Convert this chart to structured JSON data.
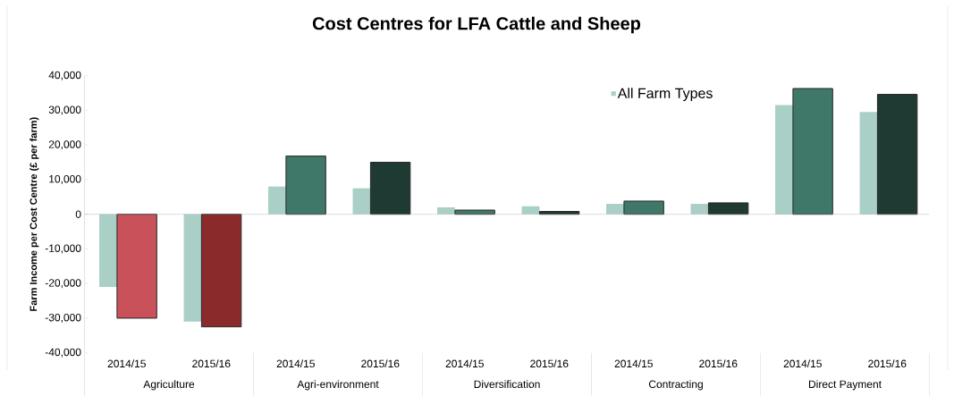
{
  "chart_data": {
    "type": "bar",
    "title": "Cost Centres for LFA Cattle and Sheep",
    "ylabel": "Farm Income per Cost Centre (£ per farm)",
    "categories": [
      "2014/15",
      "2015/16",
      "2014/15",
      "2015/16",
      "2014/15",
      "2015/16",
      "2014/15",
      "2015/16",
      "2014/15",
      "2015/16"
    ],
    "annotations": [
      "Agriculture",
      "Agri-environment",
      "Diversification",
      "Contracting",
      "Direct Payment"
    ],
    "series": [
      {
        "name": "All Farm Types",
        "color": "#a9cfc6",
        "values": [
          -21000,
          -31000,
          8000,
          7500,
          2000,
          2300,
          3000,
          3000,
          31500,
          29500
        ]
      },
      {
        "colors": [
          "#c9525a",
          "#8b2a2a",
          "#3f7868",
          "#1f3a32",
          "#3f7868",
          "#1f3a32",
          "#3f7868",
          "#1f3a32",
          "#3f7868",
          "#1f3a32"
        ],
        "values": [
          -30000,
          -32500,
          16800,
          15000,
          1200,
          800,
          3800,
          3300,
          36300,
          34600
        ]
      }
    ],
    "ylim": [
      -40000,
      40000
    ],
    "yticks": [
      {
        "value": -40000,
        "label": "-40,000"
      },
      {
        "value": -30000,
        "label": "-30,000"
      },
      {
        "value": -20000,
        "label": "-20,000"
      },
      {
        "value": -10000,
        "label": "-10,000"
      },
      0,
      {
        "value": 10000,
        "label": "10,000"
      },
      {
        "value": 20000,
        "label": "20,000"
      },
      {
        "value": 30000,
        "label": "30,000"
      },
      {
        "value": 40000,
        "label": "40,000"
      }
    ],
    "legend": "top right"
  }
}
